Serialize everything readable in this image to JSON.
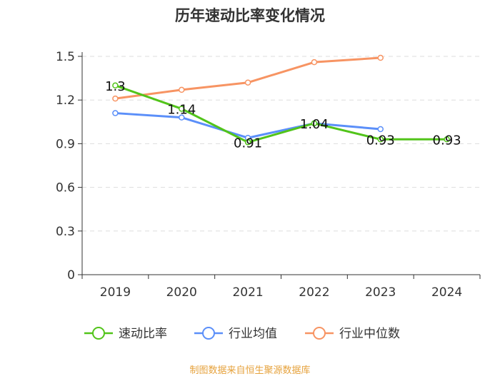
{
  "title": "历年速动比率变化情况",
  "source": "制图数据来自恒生聚源数据库",
  "chart_data": {
    "type": "line",
    "title": "历年速动比率变化情况",
    "categories": [
      "2019",
      "2020",
      "2021",
      "2022",
      "2023",
      "2024"
    ],
    "ylim": [
      0,
      1.5
    ],
    "yticks": [
      0,
      0.3,
      0.6,
      0.9,
      1.2,
      1.5
    ],
    "ytick_labels": [
      "0",
      "0.3",
      "0.6",
      "0.9",
      "1.2",
      "1.5"
    ],
    "grid": true,
    "legend_position": "bottom",
    "series": [
      {
        "name": "速动比率",
        "color": "#52c41a",
        "values": [
          1.3,
          1.14,
          0.91,
          1.04,
          0.93,
          0.93
        ],
        "labels": [
          "1.3",
          "1.14",
          "0.91",
          "1.04",
          "0.93",
          "0.93"
        ]
      },
      {
        "name": "行业均值",
        "color": "#5b8ff9",
        "values": [
          1.11,
          1.08,
          0.94,
          1.04,
          1.0,
          null
        ]
      },
      {
        "name": "行业中位数",
        "color": "#f79463",
        "values": [
          1.21,
          1.27,
          1.32,
          1.46,
          1.49,
          null
        ]
      }
    ]
  }
}
